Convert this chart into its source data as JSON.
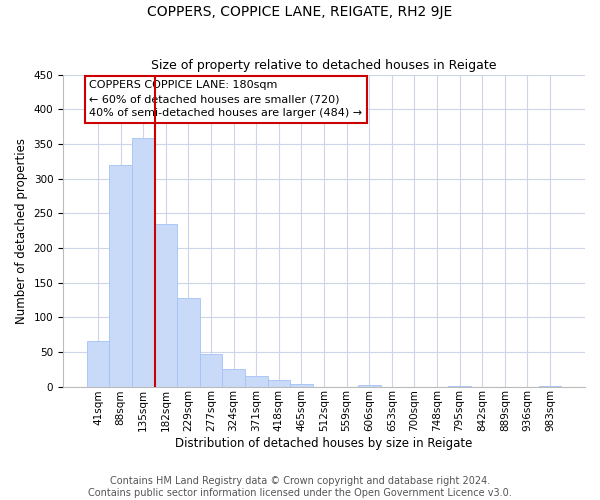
{
  "title": "COPPERS, COPPICE LANE, REIGATE, RH2 9JE",
  "subtitle": "Size of property relative to detached houses in Reigate",
  "xlabel": "Distribution of detached houses by size in Reigate",
  "ylabel": "Number of detached properties",
  "bar_labels": [
    "41sqm",
    "88sqm",
    "135sqm",
    "182sqm",
    "229sqm",
    "277sqm",
    "324sqm",
    "371sqm",
    "418sqm",
    "465sqm",
    "512sqm",
    "559sqm",
    "606sqm",
    "653sqm",
    "700sqm",
    "748sqm",
    "795sqm",
    "842sqm",
    "889sqm",
    "936sqm",
    "983sqm"
  ],
  "bar_values": [
    65,
    320,
    358,
    235,
    127,
    47,
    25,
    15,
    10,
    3,
    0,
    0,
    2,
    0,
    0,
    0,
    1,
    0,
    0,
    0,
    1
  ],
  "bar_color": "#c9daf8",
  "bar_edge_color": "#a4c2f4",
  "vline_x": 2.5,
  "vline_color": "#cc0000",
  "annotation_text": "COPPERS COPPICE LANE: 180sqm\n← 60% of detached houses are smaller (720)\n40% of semi-detached houses are larger (484) →",
  "annotation_box_color": "#ffffff",
  "annotation_box_edge": "#cc0000",
  "ylim": [
    0,
    450
  ],
  "yticks": [
    0,
    50,
    100,
    150,
    200,
    250,
    300,
    350,
    400,
    450
  ],
  "footnote": "Contains HM Land Registry data © Crown copyright and database right 2024.\nContains public sector information licensed under the Open Government Licence v3.0.",
  "bg_color": "#ffffff",
  "plot_bg_color": "#ffffff",
  "grid_color": "#ccd6e8",
  "title_fontsize": 10,
  "subtitle_fontsize": 9,
  "xlabel_fontsize": 8.5,
  "ylabel_fontsize": 8.5,
  "tick_fontsize": 7.5,
  "footnote_fontsize": 7,
  "ann_fontsize": 8
}
